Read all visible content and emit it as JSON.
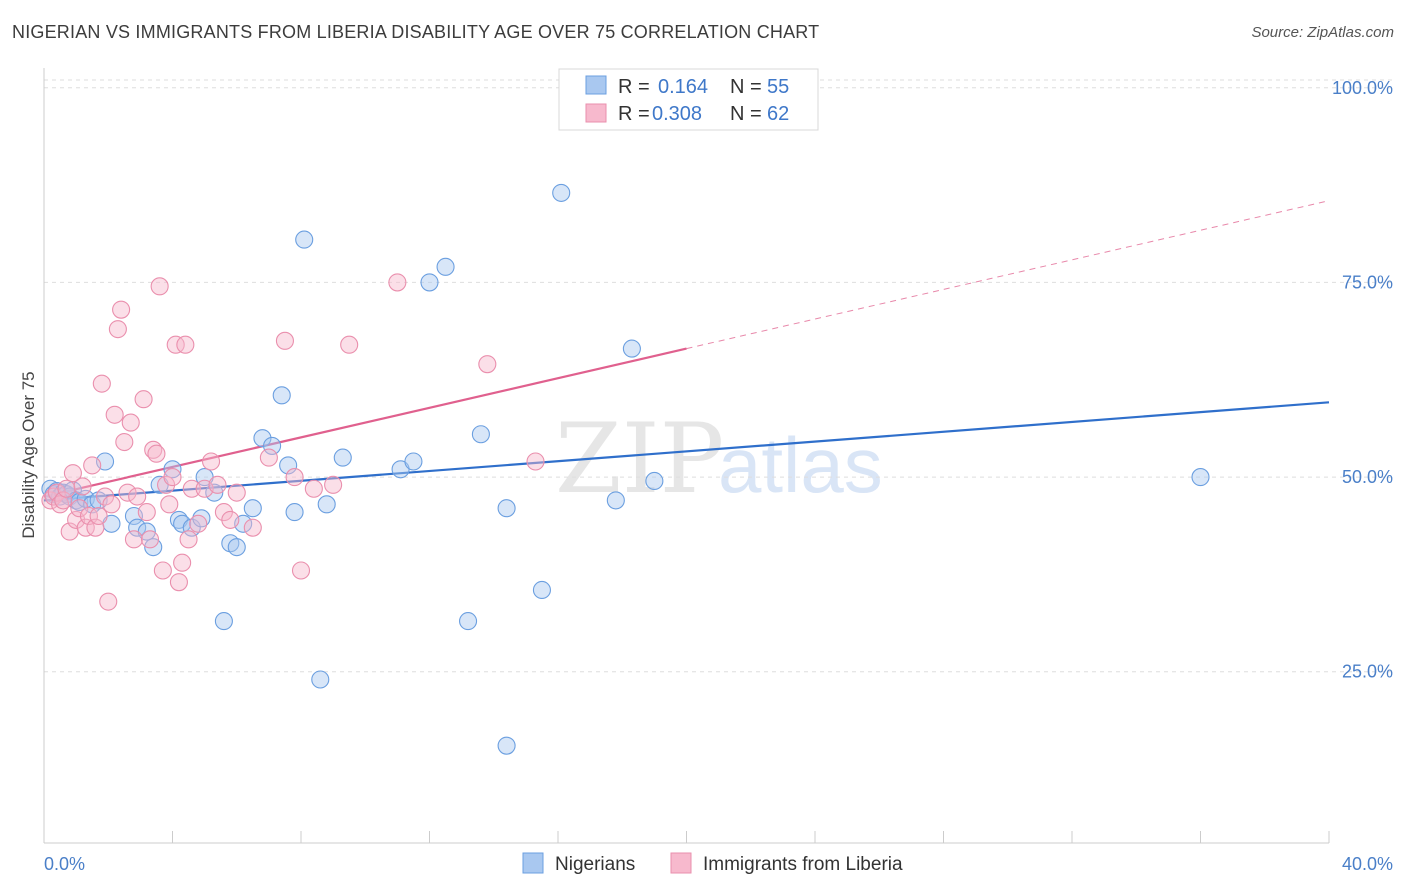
{
  "title": "NIGERIAN VS IMMIGRANTS FROM LIBERIA DISABILITY AGE OVER 75 CORRELATION CHART",
  "source": "Source: ZipAtlas.com",
  "watermark": {
    "zip": "ZIP",
    "atlas": "atlas"
  },
  "legend": {
    "rows": [
      {
        "r_label": "R =",
        "r_value": "0.164",
        "n_label": "N =",
        "n_value": "55",
        "color": "#a9c8f0"
      },
      {
        "r_label": "R =",
        "r_value": "0.308",
        "n_label": "N =",
        "n_value": "62",
        "color": "#f7b9cd"
      }
    ]
  },
  "bottom_legend": [
    "Nigerians",
    "Immigrants from Liberia"
  ],
  "chart_data": {
    "type": "scatter",
    "title": "NIGERIAN VS IMMIGRANTS FROM LIBERIA DISABILITY AGE OVER 75 CORRELATION CHART",
    "xlabel": "",
    "ylabel": "Disability Age Over 75",
    "x_tick_labels": [
      "0.0%",
      "40.0%"
    ],
    "y_tick_labels": [
      "25.0%",
      "50.0%",
      "75.0%",
      "100.0%"
    ],
    "y_ticks": [
      25,
      50,
      75,
      100
    ],
    "xlim": [
      0,
      40
    ],
    "ylim": [
      3,
      101
    ],
    "grid": true,
    "legend_position": "top-center",
    "series": [
      {
        "name": "Nigerians",
        "color": "#6b9fe0",
        "fill": "#a9c8f0",
        "trend": {
          "x": [
            0,
            40
          ],
          "y": [
            47.0,
            59.6
          ],
          "color": "#2f6fcb"
        },
        "points": [
          [
            0.2,
            48.5
          ],
          [
            0.3,
            47.8
          ],
          [
            0.4,
            48.2
          ],
          [
            0.5,
            47.5
          ],
          [
            0.6,
            48.0
          ],
          [
            0.7,
            47.8
          ],
          [
            0.8,
            47.5
          ],
          [
            0.9,
            48.3
          ],
          [
            1.0,
            47.0
          ],
          [
            1.1,
            46.8
          ],
          [
            1.3,
            47.2
          ],
          [
            1.5,
            46.5
          ],
          [
            1.7,
            47.0
          ],
          [
            1.9,
            52.0
          ],
          [
            2.1,
            44.0
          ],
          [
            2.8,
            45.0
          ],
          [
            2.9,
            43.5
          ],
          [
            3.2,
            43.0
          ],
          [
            3.4,
            41.0
          ],
          [
            3.6,
            49.0
          ],
          [
            4.0,
            51.0
          ],
          [
            4.2,
            44.5
          ],
          [
            4.3,
            44.0
          ],
          [
            4.6,
            43.5
          ],
          [
            4.9,
            44.7
          ],
          [
            5.0,
            50.0
          ],
          [
            5.3,
            48.0
          ],
          [
            5.6,
            31.5
          ],
          [
            5.8,
            41.5
          ],
          [
            6.0,
            41.0
          ],
          [
            6.2,
            44.0
          ],
          [
            6.5,
            46.0
          ],
          [
            6.8,
            55.0
          ],
          [
            7.1,
            54.0
          ],
          [
            7.4,
            60.5
          ],
          [
            7.6,
            51.5
          ],
          [
            7.8,
            45.5
          ],
          [
            8.1,
            80.5
          ],
          [
            8.6,
            24.0
          ],
          [
            8.8,
            46.5
          ],
          [
            9.3,
            52.5
          ],
          [
            11.1,
            51.0
          ],
          [
            11.5,
            52.0
          ],
          [
            12.0,
            75.0
          ],
          [
            12.5,
            77.0
          ],
          [
            13.2,
            31.5
          ],
          [
            13.6,
            55.5
          ],
          [
            14.4,
            15.5
          ],
          [
            14.4,
            46.0
          ],
          [
            15.5,
            35.5
          ],
          [
            16.1,
            86.5
          ],
          [
            17.8,
            47.0
          ],
          [
            18.3,
            66.5
          ],
          [
            19.0,
            49.5
          ],
          [
            36.0,
            50.0
          ]
        ]
      },
      {
        "name": "Immigrants from Liberia",
        "color": "#ea8fad",
        "fill": "#f7b9cd",
        "trend": {
          "x": [
            0,
            20
          ],
          "y": [
            47.5,
            66.5
          ],
          "dash_to": [
            40,
            85.5
          ],
          "color": "#e0608e"
        },
        "points": [
          [
            0.2,
            47.0
          ],
          [
            0.3,
            47.5
          ],
          [
            0.4,
            48.0
          ],
          [
            0.5,
            46.5
          ],
          [
            0.6,
            47.0
          ],
          [
            0.7,
            48.5
          ],
          [
            0.8,
            43.0
          ],
          [
            0.9,
            50.5
          ],
          [
            1.0,
            44.5
          ],
          [
            1.1,
            46.0
          ],
          [
            1.2,
            48.8
          ],
          [
            1.3,
            43.5
          ],
          [
            1.4,
            45.0
          ],
          [
            1.5,
            51.5
          ],
          [
            1.6,
            43.5
          ],
          [
            1.7,
            45.0
          ],
          [
            1.8,
            62.0
          ],
          [
            1.9,
            47.5
          ],
          [
            2.0,
            34.0
          ],
          [
            2.1,
            46.5
          ],
          [
            2.2,
            58.0
          ],
          [
            2.3,
            69.0
          ],
          [
            2.4,
            71.5
          ],
          [
            2.5,
            54.5
          ],
          [
            2.6,
            48.0
          ],
          [
            2.7,
            57.0
          ],
          [
            2.8,
            42.0
          ],
          [
            2.9,
            47.5
          ],
          [
            3.1,
            60.0
          ],
          [
            3.2,
            45.5
          ],
          [
            3.3,
            42.0
          ],
          [
            3.4,
            53.5
          ],
          [
            3.5,
            53.0
          ],
          [
            3.6,
            74.5
          ],
          [
            3.7,
            38.0
          ],
          [
            3.8,
            49.0
          ],
          [
            3.9,
            46.5
          ],
          [
            4.0,
            50.0
          ],
          [
            4.1,
            67.0
          ],
          [
            4.2,
            36.5
          ],
          [
            4.3,
            39.0
          ],
          [
            4.4,
            67.0
          ],
          [
            4.5,
            42.0
          ],
          [
            4.6,
            48.5
          ],
          [
            4.8,
            44.0
          ],
          [
            5.0,
            48.5
          ],
          [
            5.2,
            52.0
          ],
          [
            5.4,
            49.0
          ],
          [
            5.6,
            45.5
          ],
          [
            5.8,
            44.5
          ],
          [
            6.0,
            48.0
          ],
          [
            6.5,
            43.5
          ],
          [
            7.0,
            52.5
          ],
          [
            7.5,
            67.5
          ],
          [
            7.8,
            50.0
          ],
          [
            8.0,
            38.0
          ],
          [
            8.4,
            48.5
          ],
          [
            9.0,
            49.0
          ],
          [
            9.5,
            67.0
          ],
          [
            11.0,
            75.0
          ],
          [
            13.8,
            64.5
          ],
          [
            15.3,
            52.0
          ]
        ]
      }
    ]
  }
}
